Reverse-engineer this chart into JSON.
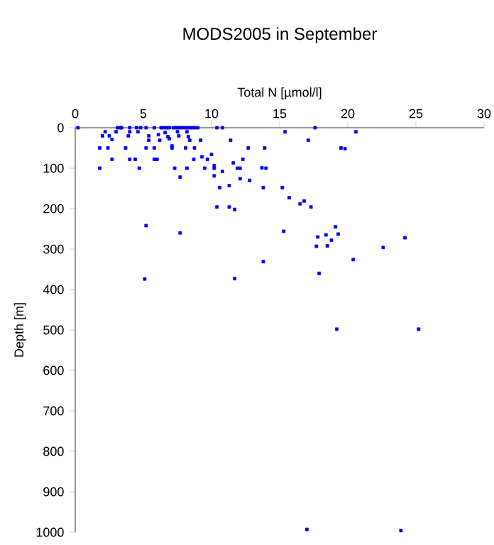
{
  "chart_data": {
    "type": "scatter",
    "title": "MODS2005 in September",
    "xlabel": "Total N [µmol/l]",
    "ylabel": "Depth [m]",
    "color": "#0000ff",
    "marker": "square",
    "xlim": [
      0,
      30
    ],
    "ylim": [
      1000,
      0
    ],
    "xticks": [
      0,
      5,
      10,
      15,
      20,
      25,
      30
    ],
    "yticks": [
      0,
      100,
      200,
      300,
      400,
      500,
      600,
      700,
      800,
      900,
      1000
    ],
    "x": [
      0.2,
      3.1,
      3.3,
      3.4,
      4.0,
      4.5,
      4.8,
      5.2,
      5.8,
      6.3,
      6.5,
      6.7,
      6.9,
      7.2,
      7.4,
      7.6,
      7.8,
      8.0,
      8.2,
      8.4,
      8.6,
      8.8,
      9.0,
      10.4,
      10.8,
      17.6,
      1.8,
      2.0,
      2.2,
      2.5,
      2.7,
      3.0,
      1.8,
      2.4,
      2.7,
      3.7,
      3.9,
      4.0,
      4.6,
      4.0,
      4.4,
      4.7,
      5.2,
      5.4,
      5.4,
      5.8,
      6.0,
      5.8,
      6.1,
      6.2,
      6.6,
      6.8,
      6.9,
      7.1,
      7.1,
      7.3,
      7.5,
      7.6,
      7.7,
      7.7,
      8.1,
      8.2,
      8.2,
      8.3,
      8.4,
      8.7,
      8.75,
      9.2,
      9.3,
      9.5,
      9.7,
      10.0,
      10.2,
      10.2,
      10.2,
      10.8,
      10.6,
      10.4,
      11.3,
      11.3,
      11.4,
      11.6,
      11.7,
      11.9,
      12.1,
      12.1,
      12.3,
      12.7,
      12.8,
      13.8,
      13.7,
      14.0,
      13.9,
      15.2,
      5.2,
      5.1,
      11.7,
      13.8,
      15.4,
      20.6,
      17.1,
      19.5,
      19.8,
      15.7,
      16.5,
      16.8,
      17.3,
      15.3,
      19.1,
      17.8,
      18.4,
      18.8,
      19.3,
      17.7,
      18.5,
      22.6,
      24.2,
      20.4,
      17.9,
      19.2,
      25.2,
      17.0,
      23.9
    ],
    "values": [
      0,
      0,
      0,
      0,
      0,
      0,
      0,
      0,
      0,
      0,
      0,
      0,
      0,
      0,
      0,
      0,
      0,
      0,
      0,
      0,
      0,
      0,
      0,
      0,
      0,
      0,
      100,
      20,
      10,
      20,
      29,
      10,
      50,
      50,
      78,
      50,
      20,
      10,
      10,
      78,
      78,
      100,
      50,
      20,
      31,
      78,
      78,
      50,
      17,
      31,
      12,
      22,
      27,
      45,
      50,
      100,
      10,
      20,
      122,
      260,
      50,
      100,
      10,
      22,
      31,
      78,
      50,
      31,
      72,
      100,
      78,
      66,
      94,
      100,
      119,
      108,
      148,
      196,
      143,
      196,
      31,
      87,
      202,
      100,
      100,
      126,
      78,
      50,
      130,
      148,
      99,
      100,
      50,
      148,
      242,
      374,
      373,
      331,
      10,
      10,
      31,
      50,
      52,
      173,
      188,
      181,
      196,
      256,
      245,
      270,
      265,
      278,
      263,
      293,
      292,
      296,
      272,
      326,
      360,
      498,
      498,
      993,
      996
    ]
  }
}
